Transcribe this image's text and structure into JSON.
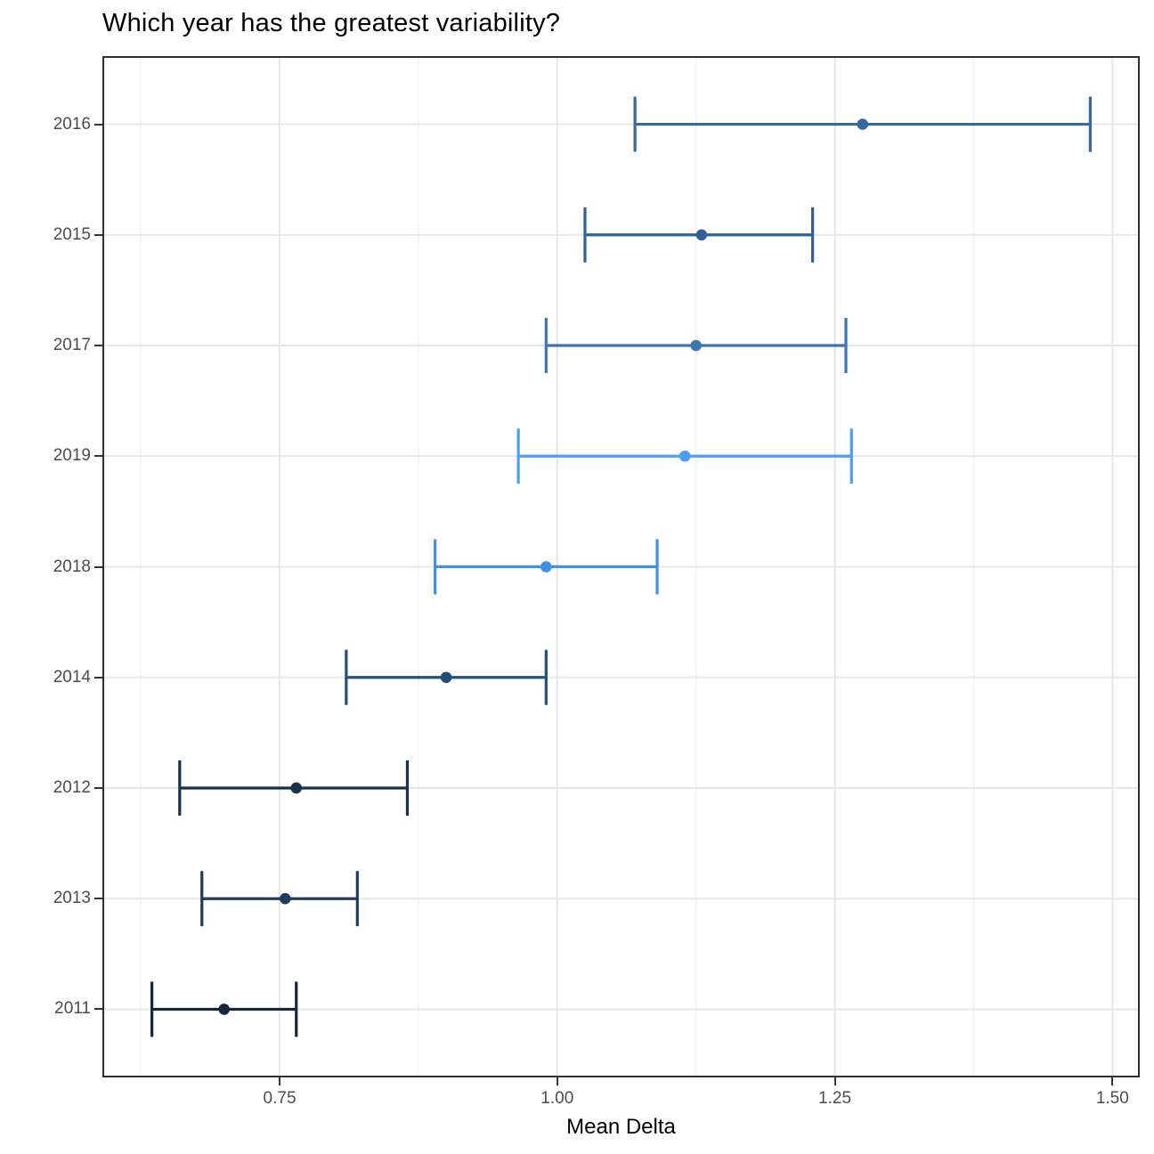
{
  "title": "Which year has the greatest variability?",
  "x_axis": {
    "label": "Mean Delta",
    "domain": [
      0.592,
      1.523
    ],
    "major_ticks": [
      0.75,
      1.0,
      1.25,
      1.5
    ],
    "major_tick_labels": [
      "0.75",
      "1.00",
      "1.25",
      "1.50"
    ],
    "minor_ticks": [
      0.625,
      0.875,
      1.125,
      1.375
    ]
  },
  "chart_data": {
    "type": "scatter",
    "subtype": "horizontal-errorbar",
    "title": "Which year has the greatest variability?",
    "xlabel": "Mean Delta",
    "ylabel": "",
    "xlim": [
      0.592,
      1.523
    ],
    "grid": true,
    "legend": false,
    "categories_top_to_bottom": [
      "2016",
      "2015",
      "2017",
      "2019",
      "2018",
      "2014",
      "2012",
      "2013",
      "2011"
    ],
    "rows": [
      {
        "year": "2016",
        "mean": 1.275,
        "lo": 1.07,
        "hi": 1.48,
        "color": "#36699F"
      },
      {
        "year": "2015",
        "mean": 1.13,
        "lo": 1.025,
        "hi": 1.23,
        "color": "#2E6195"
      },
      {
        "year": "2017",
        "mean": 1.125,
        "lo": 0.99,
        "hi": 1.26,
        "color": "#3C77B4"
      },
      {
        "year": "2019",
        "mean": 1.115,
        "lo": 0.965,
        "hi": 1.265,
        "color": "#4C9EF7"
      },
      {
        "year": "2018",
        "mean": 0.99,
        "lo": 0.89,
        "hi": 1.09,
        "color": "#4190E7"
      },
      {
        "year": "2014",
        "mean": 0.9,
        "lo": 0.81,
        "hi": 0.99,
        "color": "#20507E"
      },
      {
        "year": "2012",
        "mean": 0.765,
        "lo": 0.66,
        "hi": 0.865,
        "color": "#19314B"
      },
      {
        "year": "2013",
        "mean": 0.755,
        "lo": 0.68,
        "hi": 0.82,
        "color": "#1E3C5D"
      },
      {
        "year": "2011",
        "mean": 0.7,
        "lo": 0.635,
        "hi": 0.765,
        "color": "#14273D"
      }
    ]
  },
  "colors": {
    "grid_major": "#e7e7e7",
    "grid_minor": "#f1f1f1",
    "panel_border": "#2f2f2f",
    "tick_mark": "#333333",
    "tick_label": "#4d4d4d",
    "title_text": "#000000"
  }
}
